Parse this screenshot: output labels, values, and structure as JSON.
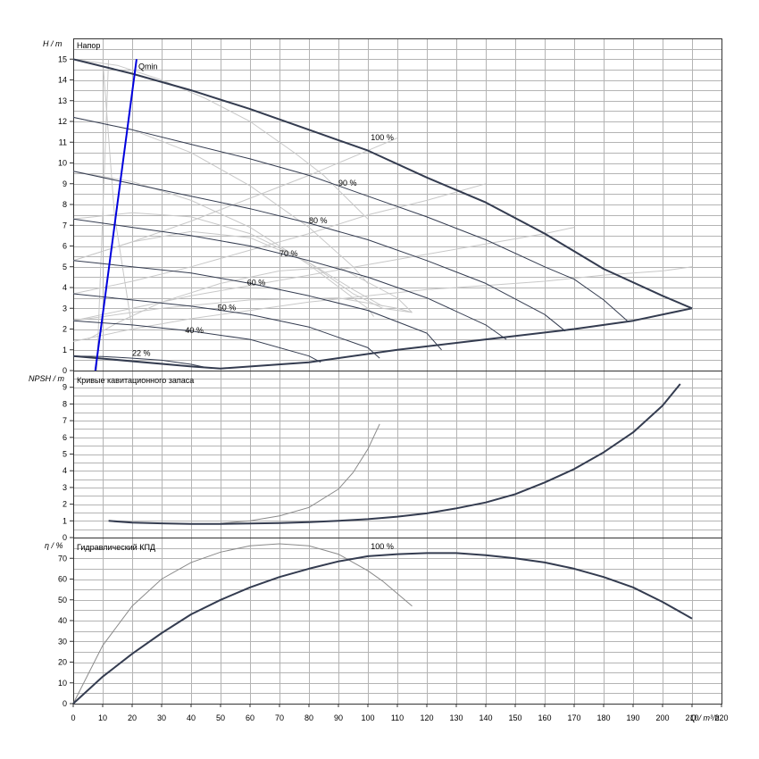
{
  "chart_data": [
    {
      "type": "line",
      "panel": "head",
      "title": "Напор",
      "ylabel": "H / m",
      "xlim": [
        0,
        220
      ],
      "ylim": [
        0,
        16
      ],
      "y_ticks": [
        0,
        1,
        2,
        3,
        4,
        5,
        6,
        7,
        8,
        9,
        10,
        11,
        12,
        13,
        14,
        15
      ],
      "grid": true,
      "qmin_label": "Qmin",
      "qmin_line": {
        "x": [
          7.5,
          21.5
        ],
        "y": [
          0,
          15
        ],
        "color": "#0000dd"
      },
      "colors": {
        "main": "#343c50",
        "secondary": "#8a8a8a",
        "light": "#c8c8c8"
      },
      "series": [
        {
          "label": "100 %",
          "label_at": [
            101,
            11.1
          ],
          "weight": "thick",
          "x": [
            0,
            20,
            40,
            60,
            80,
            100,
            120,
            140,
            160,
            180,
            200,
            210
          ],
          "y": [
            15,
            14.3,
            13.5,
            12.6,
            11.6,
            10.6,
            9.3,
            8.1,
            6.6,
            4.9,
            3.6,
            3.0
          ]
        },
        {
          "label": "90 %",
          "label_at": [
            90,
            8.9
          ],
          "weight": "medium",
          "x": [
            0,
            20,
            40,
            60,
            80,
            100,
            120,
            140,
            160,
            170,
            180,
            188
          ],
          "y": [
            12.2,
            11.6,
            10.9,
            10.2,
            9.4,
            8.4,
            7.4,
            6.3,
            5.0,
            4.4,
            3.4,
            2.4
          ]
        },
        {
          "label": "80 %",
          "label_at": [
            80,
            7.1
          ],
          "weight": "medium",
          "x": [
            0,
            20,
            40,
            60,
            80,
            100,
            120,
            140,
            160,
            167
          ],
          "y": [
            9.6,
            9.0,
            8.4,
            7.8,
            7.1,
            6.3,
            5.3,
            4.2,
            2.7,
            1.9
          ]
        },
        {
          "label": "70 %",
          "label_at": [
            70,
            5.5
          ],
          "weight": "medium",
          "x": [
            0,
            20,
            40,
            60,
            80,
            100,
            120,
            140,
            147
          ],
          "y": [
            7.3,
            6.9,
            6.5,
            6.0,
            5.3,
            4.5,
            3.5,
            2.2,
            1.5
          ]
        },
        {
          "label": "60 %",
          "label_at": [
            59,
            4.1
          ],
          "weight": "medium",
          "x": [
            0,
            20,
            40,
            60,
            80,
            100,
            120,
            125
          ],
          "y": [
            5.3,
            5.0,
            4.7,
            4.2,
            3.6,
            2.9,
            1.8,
            1.0
          ]
        },
        {
          "label": "50 %",
          "label_at": [
            49,
            2.9
          ],
          "weight": "medium",
          "x": [
            0,
            20,
            40,
            60,
            80,
            100,
            104
          ],
          "y": [
            3.7,
            3.4,
            3.1,
            2.7,
            2.1,
            1.1,
            0.6
          ]
        },
        {
          "label": "40 %",
          "label_at": [
            38,
            1.8
          ],
          "weight": "medium",
          "x": [
            0,
            20,
            40,
            60,
            80,
            84
          ],
          "y": [
            2.4,
            2.2,
            1.9,
            1.5,
            0.7,
            0.4
          ]
        },
        {
          "label": "22 %",
          "label_at": [
            20,
            0.7
          ],
          "weight": "medium",
          "x": [
            0,
            10,
            20,
            30,
            40,
            45
          ],
          "y": [
            0.7,
            0.68,
            0.6,
            0.5,
            0.3,
            0.15
          ]
        },
        {
          "label": "",
          "weight": "thick",
          "x": [
            0,
            40,
            50,
            80,
            110,
            140,
            170,
            190,
            210
          ],
          "y": [
            0.7,
            0.2,
            0.1,
            0.4,
            1.0,
            1.5,
            2.0,
            2.4,
            3.0
          ]
        }
      ],
      "thin_series": [
        {
          "x": [
            0,
            15,
            30,
            45,
            60,
            75,
            85,
            95,
            100
          ],
          "y": [
            15,
            14.7,
            14.0,
            13.1,
            12.0,
            10.5,
            9.4,
            8.0,
            7.3
          ]
        },
        {
          "x": [
            0,
            20,
            40,
            60,
            80,
            95,
            100
          ],
          "y": [
            12.2,
            11.6,
            10.5,
            8.9,
            6.9,
            5.0,
            4.2
          ]
        },
        {
          "x": [
            0,
            20,
            40,
            60,
            80,
            95,
            100,
            102
          ],
          "y": [
            9.6,
            9.1,
            8.2,
            6.9,
            5.1,
            3.5,
            3.0,
            2.6
          ]
        },
        {
          "x": [
            0,
            20,
            40,
            60,
            80,
            95,
            105,
            110,
            115
          ],
          "y": [
            5.3,
            6.2,
            6.7,
            6.4,
            5.2,
            3.7,
            3.0,
            2.9,
            2.8
          ]
        },
        {
          "x": [
            0,
            20,
            40,
            60,
            80,
            95,
            105
          ],
          "y": [
            7.3,
            7.6,
            7.4,
            6.6,
            5.2,
            3.9,
            3.1
          ]
        },
        {
          "x": [
            0,
            30,
            60,
            90,
            110,
            115
          ],
          "y": [
            2.4,
            3.0,
            3.4,
            3.5,
            3.0,
            2.8
          ]
        },
        {
          "x": [
            5,
            15,
            30,
            50,
            70,
            90,
            110,
            115
          ],
          "y": [
            1.5,
            2.3,
            3.3,
            4.2,
            4.8,
            5.0,
            3.5,
            2.8
          ]
        },
        {
          "x": [
            12,
            10,
            8
          ],
          "y": [
            15,
            7.5,
            0
          ]
        },
        {
          "x": [
            10,
            14,
            20
          ],
          "y": [
            15,
            7.5,
            2
          ]
        },
        {
          "x": [
            0,
            20,
            40,
            60,
            80,
            100,
            120,
            140,
            160,
            180,
            200,
            210
          ],
          "y": [
            1.4,
            2.0,
            2.5,
            2.9,
            3.3,
            3.6,
            3.9,
            4.1,
            4.3,
            4.6,
            4.8,
            5.0
          ]
        },
        {
          "x": [
            0,
            20,
            40,
            60,
            80,
            100,
            120,
            140,
            160,
            170
          ],
          "y": [
            2.4,
            3.0,
            3.6,
            4.1,
            4.6,
            5.1,
            5.6,
            6.1,
            6.6,
            6.9
          ]
        },
        {
          "x": [
            0,
            20,
            40,
            60,
            80,
            100,
            120,
            140
          ],
          "y": [
            3.7,
            4.3,
            5.0,
            5.8,
            6.6,
            7.5,
            8.2,
            9.0
          ]
        },
        {
          "x": [
            0,
            20,
            40,
            60,
            80,
            100,
            110
          ],
          "y": [
            5.3,
            6.2,
            7.2,
            8.3,
            9.4,
            10.6,
            11.2
          ]
        }
      ]
    },
    {
      "type": "line",
      "panel": "npsh",
      "title": "Кривые кавитационного запаса",
      "ylabel": "NPSH / m",
      "xlim": [
        0,
        220
      ],
      "ylim": [
        0,
        10
      ],
      "y_ticks": [
        0,
        1,
        2,
        3,
        4,
        5,
        6,
        7,
        8,
        9
      ],
      "grid": true,
      "series": [
        {
          "label": "",
          "weight": "thick",
          "x": [
            12,
            20,
            30,
            40,
            50,
            60,
            70,
            80,
            90,
            100,
            110,
            120,
            130,
            140,
            150,
            160,
            170,
            180,
            190,
            200,
            206
          ],
          "y": [
            1.0,
            0.9,
            0.85,
            0.82,
            0.82,
            0.84,
            0.87,
            0.92,
            1.0,
            1.1,
            1.25,
            1.45,
            1.75,
            2.1,
            2.6,
            3.3,
            4.1,
            5.1,
            6.3,
            7.9,
            9.2
          ]
        }
      ],
      "thin_series": [
        {
          "x": [
            50,
            60,
            70,
            80,
            90,
            95,
            100,
            104
          ],
          "y": [
            0.85,
            1.0,
            1.3,
            1.8,
            2.9,
            3.9,
            5.3,
            6.8
          ]
        }
      ]
    },
    {
      "type": "line",
      "panel": "efficiency",
      "title": "Гидравлический КПД",
      "ylabel": "η / %",
      "xlabel": "Q / m³/h",
      "xlim": [
        0,
        220
      ],
      "ylim": [
        0,
        80
      ],
      "x_ticks": [
        0,
        10,
        20,
        30,
        40,
        50,
        60,
        70,
        80,
        90,
        100,
        110,
        120,
        130,
        140,
        150,
        160,
        170,
        180,
        190,
        200,
        210,
        220
      ],
      "y_ticks": [
        0,
        10,
        20,
        30,
        40,
        50,
        60,
        70
      ],
      "grid": true,
      "series": [
        {
          "label": "",
          "weight": "thick",
          "x": [
            0,
            10,
            20,
            30,
            40,
            50,
            60,
            70,
            80,
            90,
            100,
            110,
            120,
            130,
            140,
            150,
            160,
            170,
            180,
            190,
            200,
            210
          ],
          "y": [
            0,
            13,
            24,
            34,
            43,
            50,
            56,
            61,
            65,
            68.5,
            71,
            72,
            72.5,
            72.5,
            71.5,
            70,
            68,
            65,
            61,
            56,
            49,
            41
          ]
        }
      ],
      "thin_series": [
        {
          "label": "100 %",
          "label_at": [
            101,
            74.5
          ],
          "x": [
            0,
            10,
            20,
            30,
            40,
            50,
            60,
            70,
            80,
            90,
            100,
            105,
            110,
            115
          ],
          "y": [
            0,
            28,
            47,
            60,
            68,
            73,
            76,
            77,
            76,
            72,
            64,
            59,
            53,
            47
          ]
        }
      ]
    }
  ]
}
